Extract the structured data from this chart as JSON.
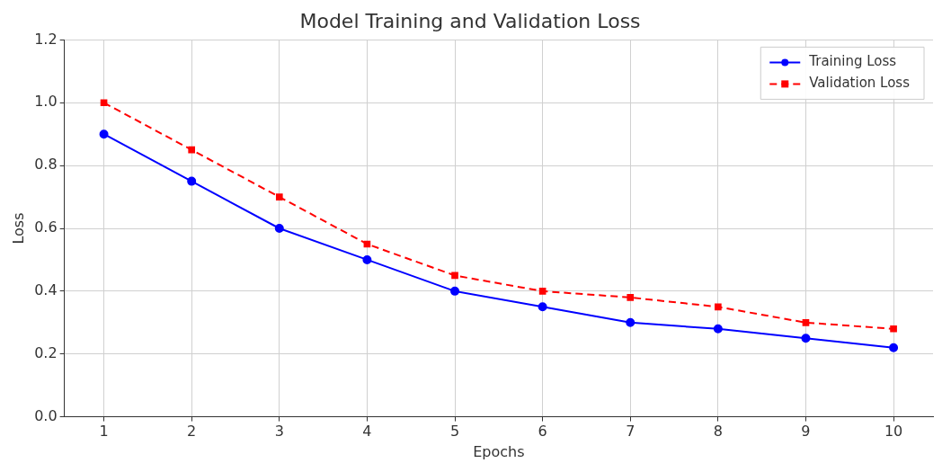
{
  "chart_data": {
    "type": "line",
    "title": "Model Training and Validation Loss",
    "xlabel": "Epochs",
    "ylabel": "Loss",
    "x": [
      1,
      2,
      3,
      4,
      5,
      6,
      7,
      8,
      9,
      10
    ],
    "series": [
      {
        "name": "Training Loss",
        "color": "#0000ff",
        "marker": "circle",
        "line_style": "solid",
        "values": [
          0.9,
          0.75,
          0.6,
          0.5,
          0.4,
          0.35,
          0.3,
          0.28,
          0.25,
          0.22
        ]
      },
      {
        "name": "Validation Loss",
        "color": "#ff0000",
        "marker": "square",
        "line_style": "dashed",
        "values": [
          1.0,
          0.85,
          0.7,
          0.55,
          0.45,
          0.4,
          0.38,
          0.35,
          0.3,
          0.28
        ]
      }
    ],
    "xlim": [
      0.55,
      10.45
    ],
    "xticks": [
      1,
      2,
      3,
      4,
      5,
      6,
      7,
      8,
      9,
      10
    ],
    "ylim": [
      0,
      1.2
    ],
    "yticks": [
      {
        "value": 0,
        "label": "0.0"
      },
      {
        "value": 0.2,
        "label": "0.2"
      },
      {
        "value": 0.4,
        "label": "0.4"
      },
      {
        "value": 0.6,
        "label": "0.6"
      },
      {
        "value": 0.8,
        "label": "0.8"
      },
      {
        "value": 1.0,
        "label": "1.0"
      },
      {
        "value": 1.2,
        "label": "1.2"
      }
    ],
    "grid": true,
    "legend": "top right"
  }
}
